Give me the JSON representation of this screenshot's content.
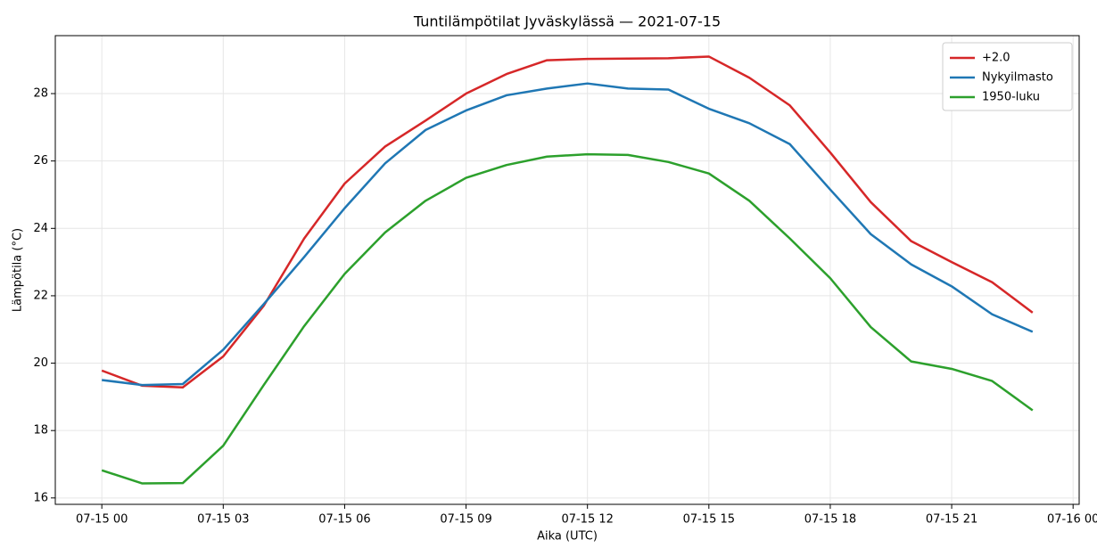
{
  "chart_data": {
    "type": "line",
    "title": "Tuntilämpötilat Jyväskylässä — 2021-07-15",
    "xlabel": "Aika (UTC)",
    "ylabel": "Lämpötila (°C)",
    "x": [
      0,
      1,
      2,
      3,
      4,
      5,
      6,
      7,
      8,
      9,
      10,
      11,
      12,
      13,
      14,
      15,
      16,
      17,
      18,
      19,
      20,
      21,
      22,
      23
    ],
    "series": [
      {
        "name": "+2.0",
        "color": "#d62728",
        "values": [
          19.78,
          19.33,
          19.28,
          20.2,
          21.7,
          23.7,
          25.33,
          26.43,
          27.2,
          28.0,
          28.58,
          28.99,
          29.03,
          29.04,
          29.05,
          29.1,
          28.47,
          27.65,
          26.25,
          24.78,
          23.62,
          23.0,
          22.4,
          21.5
        ]
      },
      {
        "name": "Nykyilmasto",
        "color": "#1f77b4",
        "values": [
          19.5,
          19.35,
          19.38,
          20.4,
          21.75,
          23.15,
          24.6,
          25.93,
          26.92,
          27.5,
          27.95,
          28.15,
          28.3,
          28.15,
          28.12,
          27.55,
          27.12,
          26.5,
          25.15,
          23.83,
          22.93,
          22.28,
          21.45,
          20.93
        ]
      },
      {
        "name": "1950-luku",
        "color": "#2ca02c",
        "values": [
          16.82,
          16.43,
          16.44,
          17.55,
          19.35,
          21.1,
          22.65,
          23.88,
          24.82,
          25.5,
          25.88,
          26.13,
          26.2,
          26.18,
          25.97,
          25.63,
          24.82,
          23.7,
          22.52,
          21.07,
          20.05,
          19.83,
          19.47,
          18.6
        ]
      }
    ],
    "xlim": [
      -1.15,
      24.15
    ],
    "xticks": [
      {
        "value": 0,
        "label": "07-15 00"
      },
      {
        "value": 3,
        "label": "07-15 03"
      },
      {
        "value": 6,
        "label": "07-15 06"
      },
      {
        "value": 9,
        "label": "07-15 09"
      },
      {
        "value": 12,
        "label": "07-15 12"
      },
      {
        "value": 15,
        "label": "07-15 15"
      },
      {
        "value": 18,
        "label": "07-15 18"
      },
      {
        "value": 21,
        "label": "07-15 21"
      },
      {
        "value": 24,
        "label": "07-16 00"
      }
    ],
    "ylim": [
      15.81,
      29.72
    ],
    "yticks": [
      16,
      18,
      20,
      22,
      24,
      26,
      28
    ],
    "grid": true,
    "legend": "upper right"
  }
}
